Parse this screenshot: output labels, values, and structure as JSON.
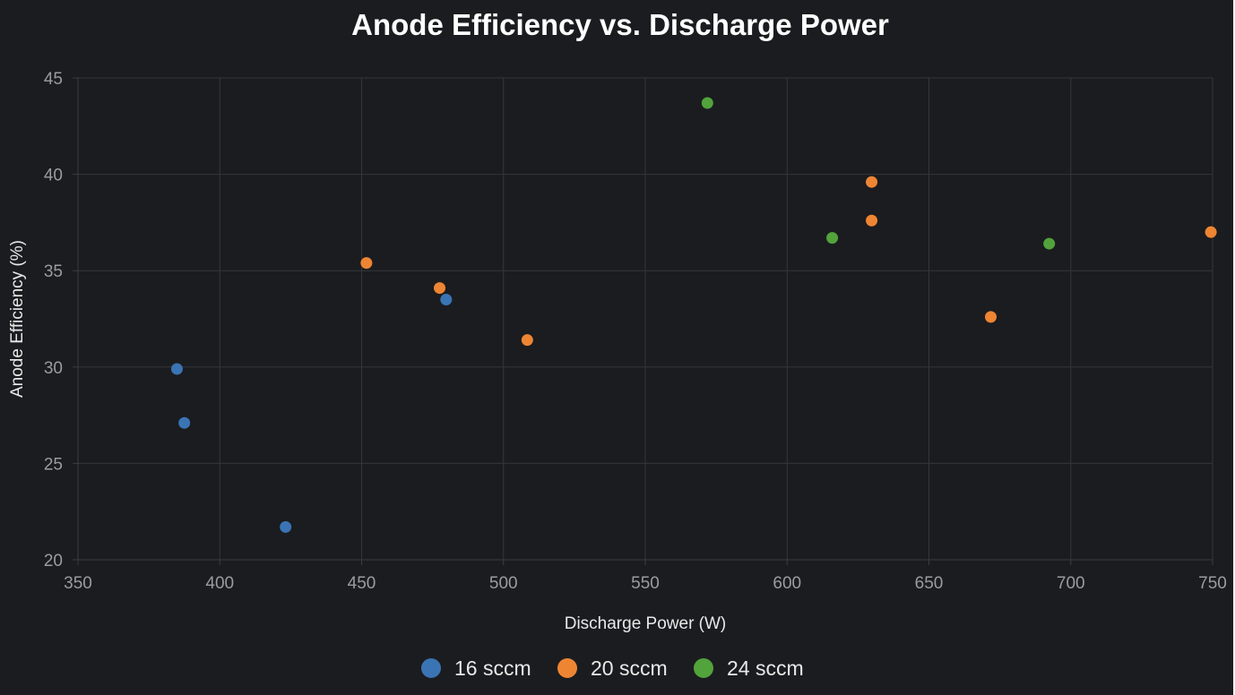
{
  "chart_data": {
    "type": "scatter",
    "title": "Anode Efficiency vs. Discharge Power",
    "xlabel": "Discharge Power (W)",
    "ylabel": "Anode Efficiency (%)",
    "xlim": [
      350,
      750
    ],
    "ylim": [
      20,
      45
    ],
    "xticks": [
      350,
      400,
      450,
      500,
      550,
      600,
      650,
      700,
      750
    ],
    "yticks": [
      20,
      25,
      30,
      35,
      40,
      45
    ],
    "grid": true,
    "legend_position": "bottom-center",
    "series": [
      {
        "name": "16 sccm",
        "color": "#3a74b4",
        "points": [
          {
            "x": 384.9,
            "y": 29.9
          },
          {
            "x": 387.5,
            "y": 27.1
          },
          {
            "x": 423.2,
            "y": 21.7
          },
          {
            "x": 479.8,
            "y": 33.5
          }
        ]
      },
      {
        "name": "20 sccm",
        "color": "#ee8533",
        "points": [
          {
            "x": 451.7,
            "y": 35.4
          },
          {
            "x": 477.5,
            "y": 34.1
          },
          {
            "x": 508.4,
            "y": 31.4
          },
          {
            "x": 629.8,
            "y": 39.6
          },
          {
            "x": 629.8,
            "y": 37.6
          },
          {
            "x": 671.8,
            "y": 32.6
          },
          {
            "x": 749.4,
            "y": 37.0
          }
        ]
      },
      {
        "name": "24 sccm",
        "color": "#52a33c",
        "points": [
          {
            "x": 571.9,
            "y": 43.7
          },
          {
            "x": 615.9,
            "y": 36.7
          },
          {
            "x": 692.4,
            "y": 36.4
          }
        ]
      }
    ]
  }
}
